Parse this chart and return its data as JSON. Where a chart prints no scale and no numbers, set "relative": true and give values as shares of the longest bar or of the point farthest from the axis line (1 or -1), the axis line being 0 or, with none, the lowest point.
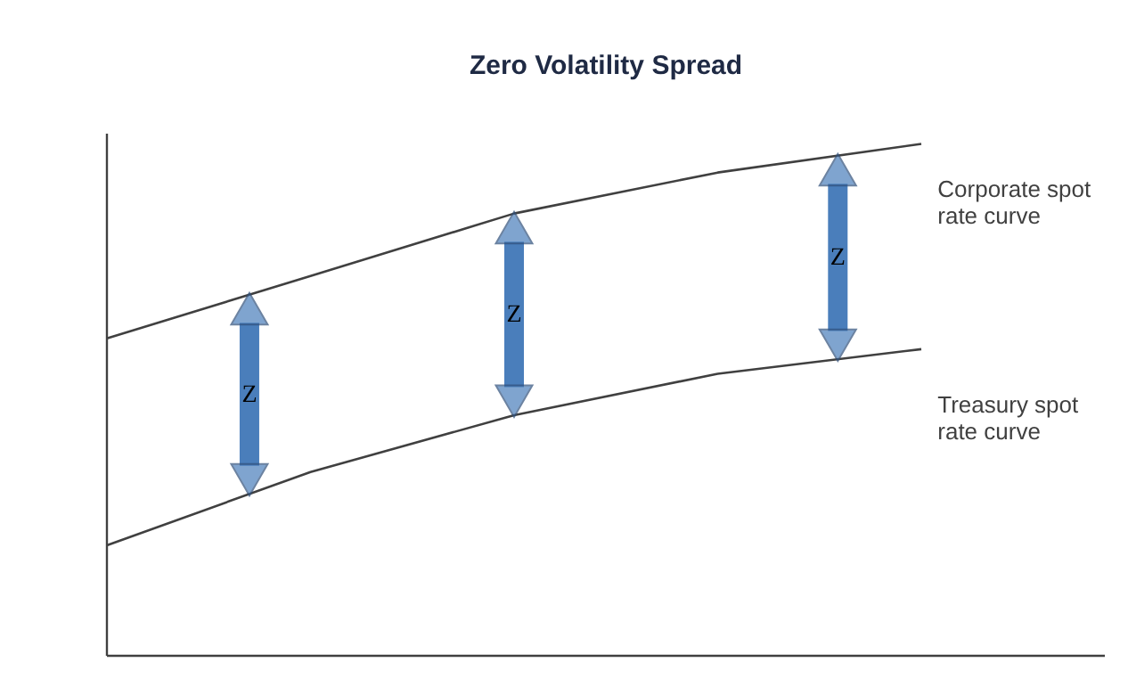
{
  "chart_data": {
    "type": "line",
    "title": "Zero Volatility Spread",
    "relative": true,
    "categories": [
      null,
      null,
      null,
      null,
      null
    ],
    "series": [
      {
        "name": "Corporate spot rate curve",
        "color": "#404040",
        "values": [
          0.62,
          0.742,
          0.864,
          0.944,
          1.0
        ]
      },
      {
        "name": "Treasury spot rate curve",
        "color": "#404040",
        "values": [
          0.216,
          0.359,
          0.47,
          0.551,
          0.599
        ]
      }
    ],
    "annotations": [
      "Z",
      "Z",
      "Z"
    ],
    "legend": false,
    "marker": "none",
    "line_style": "solid"
  }
}
